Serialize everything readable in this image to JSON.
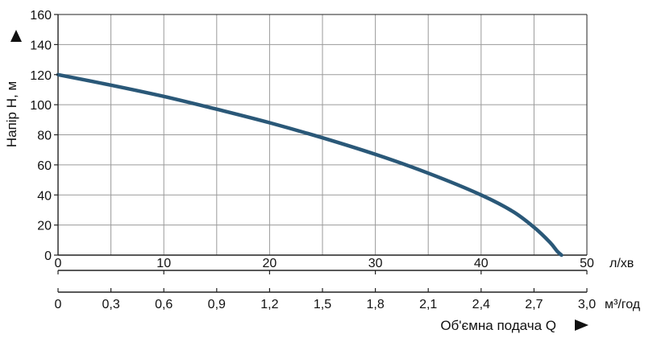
{
  "chart_data": {
    "type": "line",
    "title": "",
    "ylabel": "Напір H, м",
    "xlabel": "Об'ємна подача Q",
    "ylim": [
      0,
      160
    ],
    "yticks": [
      "0",
      "20",
      "40",
      "60",
      "80",
      "100",
      "120",
      "140",
      "160"
    ],
    "x_primary": {
      "unit": "л/хв",
      "xlim": [
        0,
        50
      ],
      "ticks": [
        "0",
        "10",
        "20",
        "30",
        "40",
        "50"
      ]
    },
    "x_secondary": {
      "unit": "м³/год",
      "xlim": [
        0,
        3.0
      ],
      "ticks": [
        "0",
        "0,3",
        "0,6",
        "0,9",
        "1,2",
        "1,5",
        "1,8",
        "2,1",
        "2,4",
        "2,7",
        "3,0"
      ]
    },
    "grid": true,
    "series": [
      {
        "color": "#2a5878",
        "x": [
          0,
          5,
          10,
          15,
          20,
          25,
          30,
          35,
          40,
          43,
          45,
          46.5,
          47.2,
          47.6
        ],
        "y": [
          120,
          113,
          105.5,
          97,
          88,
          78,
          67,
          54.5,
          40,
          29,
          18.5,
          8.5,
          2.5,
          0
        ]
      }
    ]
  }
}
